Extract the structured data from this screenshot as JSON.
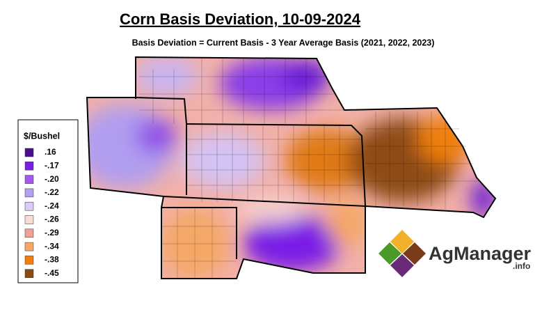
{
  "title": "Corn Basis Deviation, 10-09-2024",
  "subtitle": "Basis Deviation = Current Basis - 3 Year Average Basis (2021, 2022, 2023)",
  "legend": {
    "title": "$/Bushel",
    "items": [
      {
        "label": ".16",
        "color": "#4a0d8c"
      },
      {
        "label": "-.17",
        "color": "#7a1ee6"
      },
      {
        "label": "-.20",
        "color": "#a35ae8"
      },
      {
        "label": "-.22",
        "color": "#b4a0f0"
      },
      {
        "label": "-.24",
        "color": "#dccbf5"
      },
      {
        "label": "-.26",
        "color": "#f6dcd2"
      },
      {
        "label": "-.29",
        "color": "#f2a092"
      },
      {
        "label": "-.34",
        "color": "#f5a866"
      },
      {
        "label": "-.38",
        "color": "#ef7f10"
      },
      {
        "label": "-.45",
        "color": "#8a4a10"
      }
    ]
  },
  "logo": {
    "name": "AgManager",
    "suffix": ".info"
  }
}
